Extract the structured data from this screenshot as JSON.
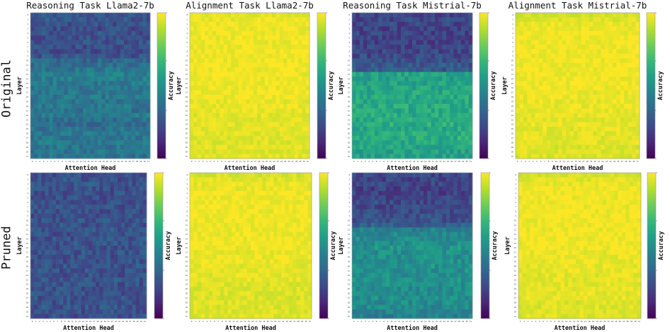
{
  "row_labels": [
    "Original",
    "Pruned"
  ],
  "chart_data": [
    {
      "type": "heatmap",
      "title": "Reasoning Task Llama2-7b",
      "xlabel": "Attention Head",
      "ylabel": "Layer",
      "colorbar_label": "Accuracy",
      "colormap": "viridis",
      "grid": false,
      "layer_mean": [
        0.26,
        0.27,
        0.25,
        0.24,
        0.25,
        0.24,
        0.25,
        0.24,
        0.23,
        0.26,
        0.33,
        0.37,
        0.4,
        0.42,
        0.43,
        0.41,
        0.4,
        0.39,
        0.4,
        0.38,
        0.4,
        0.38,
        0.42,
        0.38,
        0.36,
        0.38,
        0.4,
        0.4,
        0.4,
        0.39,
        0.4,
        0.38
      ]
    },
    {
      "type": "heatmap",
      "title": "Alignment Task Llama2-7b",
      "xlabel": "Attention Head",
      "ylabel": "Layer",
      "colorbar_label": "Accuracy",
      "colormap": "viridis",
      "grid": false,
      "layer_mean": [
        0.96,
        0.97,
        0.98,
        0.98,
        0.98,
        0.98,
        0.98,
        0.98,
        0.98,
        0.98,
        0.98,
        0.98,
        0.98,
        0.98,
        0.98,
        0.98,
        0.98,
        0.98,
        0.98,
        0.97,
        0.97,
        0.97,
        0.96,
        0.96,
        0.96,
        0.96,
        0.96,
        0.95,
        0.95,
        0.96,
        0.95,
        0.96
      ]
    },
    {
      "type": "heatmap",
      "title": "Reasoning Task Mistrial-7b",
      "xlabel": "Attention Head",
      "ylabel": "Layer",
      "colorbar_label": "Accuracy",
      "colormap": "viridis",
      "grid": false,
      "layer_mean": [
        0.2,
        0.22,
        0.21,
        0.2,
        0.2,
        0.19,
        0.2,
        0.2,
        0.21,
        0.22,
        0.24,
        0.26,
        0.27,
        0.58,
        0.56,
        0.57,
        0.58,
        0.6,
        0.6,
        0.6,
        0.61,
        0.6,
        0.6,
        0.61,
        0.62,
        0.6,
        0.61,
        0.62,
        0.6,
        0.58,
        0.57,
        0.58
      ]
    },
    {
      "type": "heatmap",
      "title": "Alignment Task Mistrial-7b",
      "xlabel": "Attention Head",
      "ylabel": "Layer",
      "colorbar_label": "Accuracy",
      "colormap": "viridis",
      "grid": false,
      "layer_mean": [
        0.93,
        0.95,
        0.97,
        0.98,
        0.98,
        0.98,
        0.98,
        0.98,
        0.98,
        0.98,
        0.98,
        0.98,
        0.98,
        0.98,
        0.98,
        0.98,
        0.98,
        0.97,
        0.97,
        0.97,
        0.97,
        0.97,
        0.97,
        0.96,
        0.97,
        0.96,
        0.96,
        0.96,
        0.96,
        0.95,
        0.95,
        0.95
      ]
    },
    {
      "type": "heatmap",
      "title": "",
      "xlabel": "Attention Head",
      "ylabel": "Layer",
      "colorbar_label": "Accuracy",
      "colormap": "viridis",
      "grid": false,
      "layer_mean": [
        0.25,
        0.25,
        0.26,
        0.25,
        0.24,
        0.25,
        0.25,
        0.26,
        0.25,
        0.25,
        0.26,
        0.25,
        0.26,
        0.25,
        0.25,
        0.26,
        0.25,
        0.26,
        0.25,
        0.25,
        0.26,
        0.25,
        0.25,
        0.26,
        0.25,
        0.25,
        0.26,
        0.25,
        0.25,
        0.26,
        0.25,
        0.24
      ]
    },
    {
      "type": "heatmap",
      "title": "",
      "xlabel": "Attention Head",
      "ylabel": "Layer",
      "colorbar_label": "Accuracy",
      "colormap": "viridis",
      "grid": false,
      "layer_mean": [
        0.94,
        0.96,
        0.97,
        0.97,
        0.98,
        0.98,
        0.98,
        0.98,
        0.98,
        0.98,
        0.98,
        0.98,
        0.98,
        0.98,
        0.98,
        0.98,
        0.98,
        0.97,
        0.97,
        0.97,
        0.96,
        0.96,
        0.96,
        0.96,
        0.95,
        0.95,
        0.95,
        0.95,
        0.95,
        0.95,
        0.95,
        0.95
      ]
    },
    {
      "type": "heatmap",
      "title": "",
      "xlabel": "Attention Head",
      "ylabel": "Layer",
      "colorbar_label": "Accuracy",
      "colormap": "viridis",
      "grid": false,
      "layer_mean": [
        0.22,
        0.2,
        0.21,
        0.19,
        0.2,
        0.2,
        0.22,
        0.21,
        0.23,
        0.24,
        0.25,
        0.3,
        0.45,
        0.47,
        0.48,
        0.5,
        0.52,
        0.5,
        0.5,
        0.5,
        0.52,
        0.5,
        0.5,
        0.52,
        0.5,
        0.48,
        0.5,
        0.5,
        0.48,
        0.47,
        0.45,
        0.44
      ]
    },
    {
      "type": "heatmap",
      "title": "",
      "xlabel": "Attention Head",
      "ylabel": "Layer",
      "colorbar_label": "Accuracy",
      "colormap": "viridis",
      "grid": false,
      "layer_mean": [
        0.94,
        0.96,
        0.97,
        0.98,
        0.98,
        0.98,
        0.98,
        0.98,
        0.98,
        0.98,
        0.98,
        0.98,
        0.98,
        0.98,
        0.98,
        0.98,
        0.98,
        0.97,
        0.97,
        0.97,
        0.97,
        0.97,
        0.96,
        0.96,
        0.96,
        0.96,
        0.96,
        0.96,
        0.95,
        0.95,
        0.95,
        0.95
      ]
    }
  ]
}
